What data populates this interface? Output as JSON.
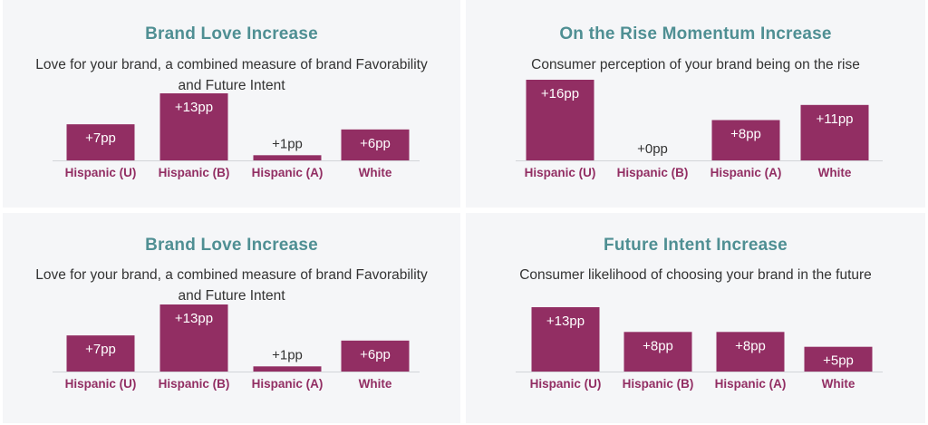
{
  "colors": {
    "bar": "#922e63",
    "title": "#4f8f93",
    "category": "#922e63",
    "panel_bg": "#f5f6f8",
    "label_inside": "#ffffff",
    "label_outside": "#333333"
  },
  "chart_data": [
    {
      "type": "bar",
      "title": "Brand Love Increase",
      "subtitle": "Love for your brand, a combined measure of brand Favorability and Future Intent",
      "categories": [
        "Hispanic (U)",
        "Hispanic (B)",
        "Hispanic (A)",
        "White"
      ],
      "values": [
        7,
        13,
        1,
        6
      ],
      "labels": [
        "+7pp",
        "+13pp",
        "+1pp",
        "+6pp"
      ],
      "ylim": [
        0,
        13
      ]
    },
    {
      "type": "bar",
      "title": "On the Rise Momentum Increase",
      "subtitle": "Consumer perception of your brand being on the rise",
      "categories": [
        "Hispanic (U)",
        "Hispanic (B)",
        "Hispanic (A)",
        "White"
      ],
      "values": [
        16,
        0,
        8,
        11
      ],
      "labels": [
        "+16pp",
        "+0pp",
        "+8pp",
        "+11pp"
      ],
      "ylim": [
        0,
        16
      ]
    },
    {
      "type": "bar",
      "title": "Brand Love Increase",
      "subtitle": "Love for your brand, a combined measure of brand Favorability and Future Intent",
      "categories": [
        "Hispanic (U)",
        "Hispanic (B)",
        "Hispanic (A)",
        "White"
      ],
      "values": [
        7,
        13,
        1,
        6
      ],
      "labels": [
        "+7pp",
        "+13pp",
        "+1pp",
        "+6pp"
      ],
      "ylim": [
        0,
        13
      ]
    },
    {
      "type": "bar",
      "title": "Future Intent Increase",
      "subtitle": "Consumer likelihood of choosing your brand in the future",
      "categories": [
        "Hispanic (U)",
        "Hispanic (B)",
        "Hispanic (A)",
        "White"
      ],
      "values": [
        13,
        8,
        8,
        5
      ],
      "labels": [
        "+13pp",
        "+8pp",
        "+8pp",
        "+5pp"
      ],
      "ylim": [
        0,
        13
      ]
    }
  ]
}
